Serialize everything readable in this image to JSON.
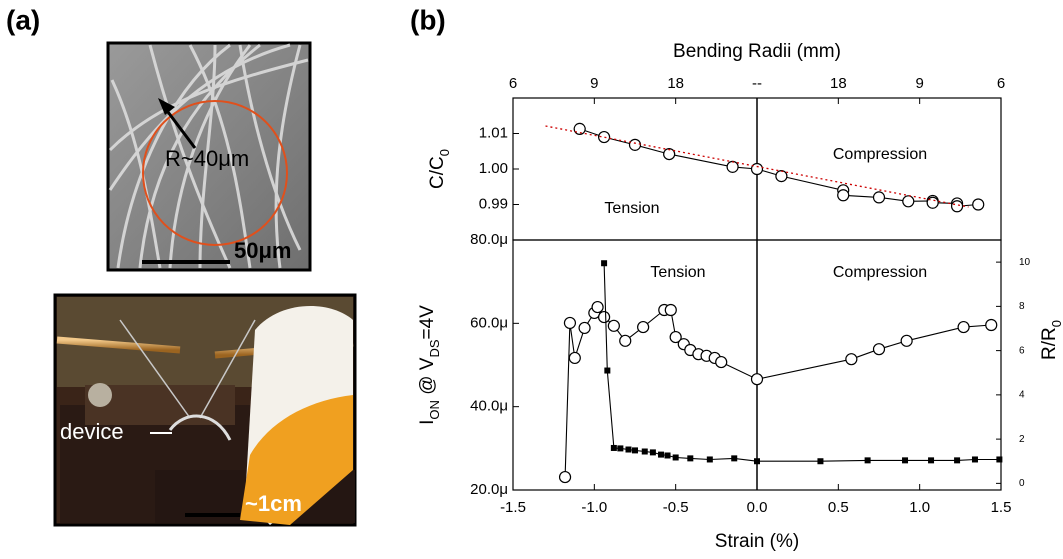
{
  "figure": {
    "panel_labels": [
      "(a)",
      "(b)"
    ],
    "sem_labels": [
      "R~40μm",
      "50μm"
    ],
    "photo_labels": [
      "device",
      "~1cm"
    ]
  },
  "chart_data": [
    {
      "type": "line",
      "xlim": [
        -1.5,
        1.5
      ],
      "x2label": "Bending Radii (mm)",
      "x2ticks": [
        {
          "value": -1.5,
          "label": "6"
        },
        {
          "value": -1.0,
          "label": "9"
        },
        {
          "value": -0.5,
          "label": "18"
        },
        {
          "value": 0,
          "label": "--"
        },
        {
          "value": 0.5,
          "label": "18"
        },
        {
          "value": 1.0,
          "label": "9"
        },
        {
          "value": 1.5,
          "label": "6"
        }
      ],
      "ylabel": [
        "C/C",
        "0"
      ],
      "ylim": [
        0.98,
        1.02
      ],
      "yticks": [
        0.99,
        {
          "value": 1.0,
          "label": "1.00"
        },
        1.01
      ],
      "annotations": [
        "Compression",
        "Tension"
      ],
      "vline": 0,
      "series": [
        {
          "color": "#000000",
          "marker": "circle",
          "x": [
            -1.09,
            -0.94,
            -0.75,
            -0.54,
            -0.15,
            0.0,
            0.15,
            0.53,
            0.53,
            0.75,
            0.93,
            1.08,
            1.08,
            1.23,
            1.23,
            1.36
          ],
          "values": [
            1.0113,
            1.009,
            1.0068,
            1.0042,
            1.0006,
            1.0,
            0.998,
            0.994,
            0.9926,
            0.992,
            0.9909,
            0.991,
            0.9905,
            0.9903,
            0.9895,
            0.99
          ]
        },
        {
          "color": "#cc0000",
          "dashed": true,
          "x": [
            -1.3,
            1.3
          ],
          "values": [
            1.0121,
            0.9893
          ]
        }
      ]
    },
    {
      "type": "line",
      "xlim": [
        -1.5,
        1.5
      ],
      "xlabel": "Strain (%)",
      "xticks": [
        -1.5,
        {
          "value": -1.0,
          "label": "-1.0"
        },
        -0.5,
        {
          "value": 0,
          "label": "0.0"
        },
        0.5,
        {
          "value": 1.0,
          "label": "1.0"
        },
        1.5
      ],
      "ylabel": [
        "I",
        "ON",
        " @ V",
        "DS",
        "=4V"
      ],
      "ylim": [
        2e-05,
        8e-05
      ],
      "yticks": [
        {
          "value": 2e-05,
          "label": "20.0μ"
        },
        {
          "value": 4e-05,
          "label": "40.0μ"
        },
        {
          "value": 6e-05,
          "label": "60.0μ"
        },
        {
          "value": 8e-05,
          "label": "80.0μ"
        }
      ],
      "y2label": [
        "R/R",
        "0"
      ],
      "y2lim": [
        -0.3,
        11
      ],
      "y2ticks": [
        0,
        2,
        4,
        6,
        8,
        10
      ],
      "annotations": [
        "Tension",
        "Compression"
      ],
      "vline": 0,
      "series": [
        {
          "color": "#000000",
          "marker": "circle",
          "x": [
            -1.18,
            -1.15,
            -1.12,
            -1.06,
            -1.0,
            -0.98,
            -0.94,
            -0.88,
            -0.81,
            -0.7,
            -0.57,
            -0.53,
            -0.5,
            -0.45,
            -0.41,
            -0.36,
            -0.31,
            -0.26,
            -0.22,
            0.0,
            0.58,
            0.75,
            0.92,
            1.27,
            1.44
          ],
          "values": [
            2.31e-05,
            6.01e-05,
            5.17e-05,
            5.89e-05,
            6.25e-05,
            6.39e-05,
            6.15e-05,
            5.94e-05,
            5.58e-05,
            5.91e-05,
            6.32e-05,
            6.32e-05,
            5.67e-05,
            5.5e-05,
            5.36e-05,
            5.26e-05,
            5.22e-05,
            5.17e-05,
            5.07e-05,
            4.66e-05,
            5.14e-05,
            5.38e-05,
            5.58e-05,
            5.91e-05,
            5.96e-05
          ]
        },
        {
          "color": "#000000",
          "marker": "square",
          "axis": "y2",
          "x": [
            -0.94,
            -0.92,
            -0.88,
            -0.84,
            -0.79,
            -0.75,
            -0.69,
            -0.64,
            -0.59,
            -0.55,
            -0.5,
            -0.41,
            -0.29,
            -0.14,
            0.0,
            0.39,
            0.68,
            0.91,
            1.07,
            1.23,
            1.34,
            1.49
          ],
          "values": [
            9.95,
            5.1,
            1.6,
            1.58,
            1.53,
            1.49,
            1.44,
            1.4,
            1.3,
            1.26,
            1.17,
            1.13,
            1.08,
            1.13,
            1.0,
            1.0,
            1.04,
            1.04,
            1.04,
            1.04,
            1.08,
            1.08
          ]
        }
      ]
    }
  ]
}
